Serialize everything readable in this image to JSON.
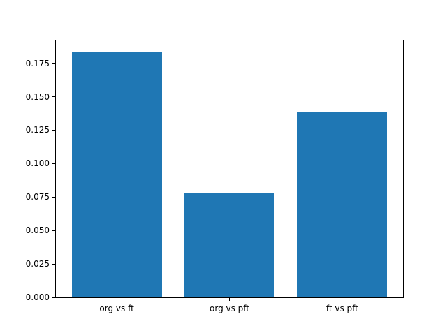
{
  "chart_data": {
    "type": "bar",
    "title": "",
    "categories": [
      "org vs ft",
      "org vs pft",
      "ft vs pft"
    ],
    "values": [
      0.183,
      0.0775,
      0.139
    ],
    "xlabel": "",
    "ylabel": "",
    "ylim": [
      0,
      0.192
    ],
    "ytick_values": [
      0.0,
      0.025,
      0.05,
      0.075,
      0.1,
      0.125,
      0.15,
      0.175
    ],
    "ytick_labels": [
      "0.000",
      "0.025",
      "0.050",
      "0.075",
      "0.100",
      "0.125",
      "0.150",
      "0.175"
    ],
    "bar_color": "#1f77b4",
    "grid": false,
    "legend": "none"
  },
  "colors": {
    "bar": "#1f77b4",
    "spines": "#000000",
    "tick_text": "#000000",
    "background": "#ffffff"
  }
}
